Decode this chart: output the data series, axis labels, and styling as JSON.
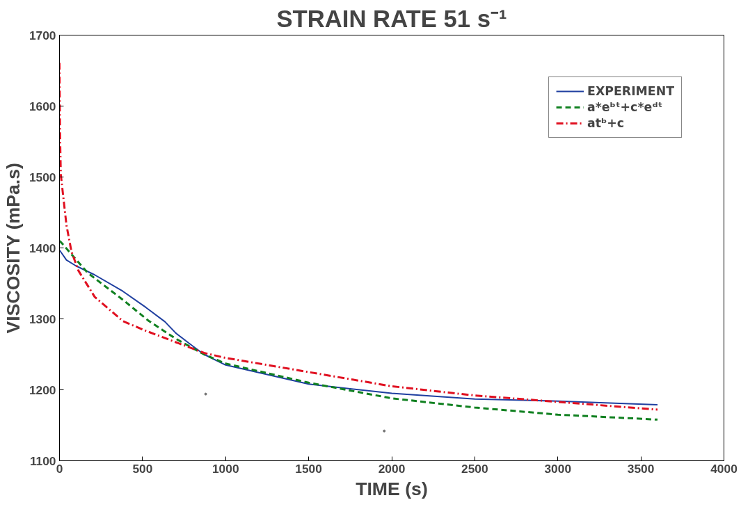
{
  "chart_data": {
    "type": "line",
    "title": "STRAIN RATE 51 s⁻¹",
    "xlabel": "TIME (s)",
    "ylabel": "VISCOSITY (mPa.s)",
    "xlim": [
      0,
      4000
    ],
    "ylim": [
      1100,
      1700
    ],
    "xticks": [
      0,
      500,
      1000,
      1500,
      2000,
      2500,
      3000,
      3500,
      4000
    ],
    "yticks": [
      1100,
      1200,
      1300,
      1400,
      1500,
      1600,
      1700
    ],
    "grid": false,
    "legend": "top right",
    "series": [
      {
        "name": "EXPERIMENT",
        "color": "#1f3fa0",
        "line_style": "solid",
        "x": [
          0,
          42,
          97,
          212,
          381,
          521,
          635,
          700,
          800,
          870,
          1000,
          1500,
          2000,
          2500,
          3000,
          3600
        ],
        "values": [
          1397,
          1383,
          1375,
          1362,
          1339,
          1316,
          1296,
          1280,
          1262,
          1250,
          1235,
          1208,
          1195,
          1187,
          1184,
          1179
        ]
      },
      {
        "type": "scatter",
        "color": "#707070",
        "marker": "circle",
        "x": [
          880,
          1955
        ],
        "values": [
          1194,
          1142
        ]
      },
      {
        "name": "a*eᵇᵗ+c*eᵈᵗ",
        "color": "#108020",
        "line_style": "dashed",
        "x": [
          0,
          13,
          169,
          381,
          538,
          700,
          870,
          1000,
          1500,
          2000,
          2500,
          3000,
          3600
        ],
        "values": [
          1410,
          1407,
          1365,
          1327,
          1297,
          1272,
          1250,
          1237,
          1210,
          1188,
          1175,
          1165,
          1158
        ]
      },
      {
        "name": "atᵇ+c",
        "color": "#e01020",
        "line_style": "dashdot",
        "x": [
          0,
          2,
          4,
          8,
          42,
          72,
          114,
          212,
          381,
          500,
          870,
          1000,
          1500,
          2000,
          2500,
          3000,
          3600
        ],
        "values": [
          1661,
          1600,
          1550,
          1503,
          1432,
          1395,
          1368,
          1331,
          1297,
          1285,
          1252,
          1245,
          1225,
          1205,
          1192,
          1183,
          1172
        ]
      }
    ]
  }
}
